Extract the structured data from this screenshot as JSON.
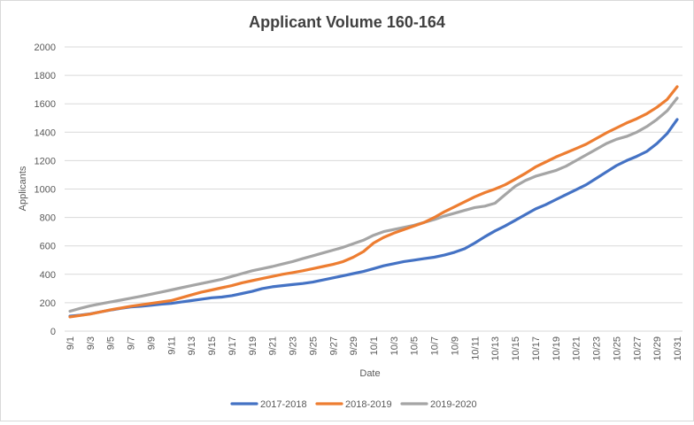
{
  "chart_data": {
    "type": "line",
    "title": "Applicant Volume 160-164",
    "xlabel": "Date",
    "ylabel": "Applicants",
    "ylim": [
      0,
      2000
    ],
    "yticks": [
      0,
      200,
      400,
      600,
      800,
      1000,
      1200,
      1400,
      1600,
      1800,
      2000
    ],
    "grid": true,
    "legend_position": "bottom",
    "x": [
      "9/1",
      "9/2",
      "9/3",
      "9/4",
      "9/5",
      "9/6",
      "9/7",
      "9/8",
      "9/9",
      "9/10",
      "9/11",
      "9/12",
      "9/13",
      "9/14",
      "9/15",
      "9/16",
      "9/17",
      "9/18",
      "9/19",
      "9/20",
      "9/21",
      "9/22",
      "9/23",
      "9/24",
      "9/25",
      "9/26",
      "9/27",
      "9/28",
      "9/29",
      "9/30",
      "10/1",
      "10/2",
      "10/3",
      "10/4",
      "10/5",
      "10/6",
      "10/7",
      "10/8",
      "10/9",
      "10/10",
      "10/11",
      "10/12",
      "10/13",
      "10/14",
      "10/15",
      "10/16",
      "10/17",
      "10/18",
      "10/19",
      "10/20",
      "10/21",
      "10/22",
      "10/23",
      "10/24",
      "10/25",
      "10/26",
      "10/27",
      "10/28",
      "10/29",
      "10/30",
      "10/31"
    ],
    "x_tick_labels": [
      "9/1",
      "9/3",
      "9/5",
      "9/7",
      "9/9",
      "9/11",
      "9/13",
      "9/15",
      "9/17",
      "9/19",
      "9/21",
      "9/23",
      "9/25",
      "9/27",
      "9/29",
      "10/1",
      "10/3",
      "10/5",
      "10/7",
      "10/9",
      "10/11",
      "10/13",
      "10/15",
      "10/17",
      "10/19",
      "10/21",
      "10/23",
      "10/25",
      "10/27",
      "10/29",
      "10/31"
    ],
    "series": [
      {
        "name": "2017-2018",
        "color": "#4472C4",
        "values": [
          105,
          112,
          122,
          135,
          148,
          160,
          170,
          175,
          182,
          190,
          195,
          205,
          215,
          225,
          235,
          240,
          250,
          265,
          280,
          300,
          312,
          320,
          328,
          335,
          345,
          360,
          375,
          390,
          405,
          420,
          440,
          460,
          475,
          490,
          500,
          510,
          520,
          535,
          555,
          580,
          620,
          665,
          705,
          740,
          780,
          820,
          860,
          890,
          925,
          960,
          995,
          1030,
          1075,
          1120,
          1165,
          1200,
          1230,
          1265,
          1320,
          1390,
          1490
        ]
      },
      {
        "name": "2018-2019",
        "color": "#ED7D31",
        "values": [
          100,
          110,
          120,
          135,
          150,
          162,
          175,
          185,
          195,
          205,
          215,
          235,
          255,
          275,
          290,
          305,
          320,
          340,
          355,
          370,
          385,
          400,
          412,
          425,
          440,
          455,
          470,
          490,
          520,
          560,
          620,
          660,
          690,
          715,
          740,
          765,
          800,
          840,
          875,
          910,
          945,
          975,
          1000,
          1030,
          1070,
          1110,
          1155,
          1190,
          1225,
          1255,
          1285,
          1315,
          1355,
          1395,
          1430,
          1465,
          1495,
          1530,
          1575,
          1630,
          1720
        ]
      },
      {
        "name": "2019-2020",
        "color": "#A5A5A5",
        "values": [
          140,
          160,
          178,
          192,
          205,
          218,
          232,
          245,
          260,
          275,
          290,
          305,
          320,
          335,
          350,
          365,
          385,
          405,
          425,
          440,
          455,
          472,
          490,
          510,
          530,
          550,
          570,
          590,
          615,
          640,
          675,
          700,
          715,
          730,
          745,
          765,
          785,
          810,
          830,
          850,
          870,
          880,
          900,
          960,
          1020,
          1060,
          1090,
          1110,
          1130,
          1160,
          1200,
          1240,
          1280,
          1320,
          1350,
          1370,
          1400,
          1440,
          1490,
          1550,
          1640
        ]
      }
    ]
  }
}
